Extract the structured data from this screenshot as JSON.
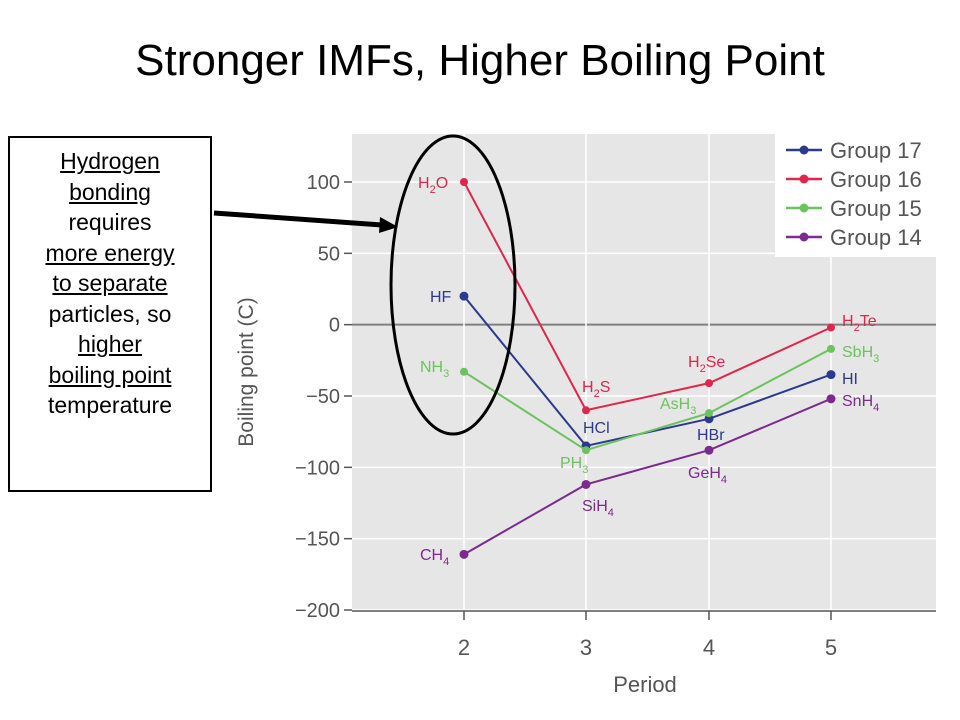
{
  "title": "Stronger IMFs, Higher Boiling Point",
  "callout": {
    "lines": [
      {
        "text": "Hydrogen",
        "underline": true
      },
      {
        "text": "bonding",
        "underline": true
      },
      {
        "text": "requires",
        "underline": false
      },
      {
        "text": "more energy",
        "underline": true
      },
      {
        "text": "to separate",
        "underline": true
      },
      {
        "text": "particles, so",
        "underline": false
      },
      {
        "text": "higher",
        "underline": true
      },
      {
        "text": "boiling point",
        "underline": true
      },
      {
        "text": "temperature",
        "underline": false
      }
    ]
  },
  "chart_data": {
    "type": "line",
    "xlabel": "Period",
    "ylabel": "Boiling point (C)",
    "x": [
      2,
      3,
      4,
      5
    ],
    "xticks": [
      "2",
      "3",
      "4",
      "5"
    ],
    "ylim": [
      -200,
      130
    ],
    "yticks": [
      {
        "value": 100,
        "label": "100"
      },
      {
        "value": 50,
        "label": "50"
      },
      {
        "value": 0,
        "label": "0"
      },
      {
        "value": -50,
        "label": "−50"
      },
      {
        "value": -100,
        "label": "−100"
      },
      {
        "value": -150,
        "label": "−150"
      },
      {
        "value": -200,
        "label": "−200"
      }
    ],
    "grid": true,
    "legend": "top-right",
    "series": [
      {
        "name": "Group 17",
        "color": "#2b3a8c",
        "values": [
          20,
          -85,
          -66,
          -35
        ],
        "labels": [
          {
            "base": "HF",
            "sub": ""
          },
          {
            "base": "HCl",
            "sub": ""
          },
          {
            "base": "HBr",
            "sub": ""
          },
          {
            "base": "HI",
            "sub": ""
          }
        ]
      },
      {
        "name": "Group 16",
        "color": "#e0264b",
        "values": [
          100,
          -60,
          -41,
          -2
        ],
        "labels": [
          {
            "base": "H",
            "sub": "2",
            "tail": "O"
          },
          {
            "base": "H",
            "sub": "2",
            "tail": "S"
          },
          {
            "base": "H",
            "sub": "2",
            "tail": "Se"
          },
          {
            "base": "H",
            "sub": "2",
            "tail": "Te"
          }
        ]
      },
      {
        "name": "Group 15",
        "color": "#6cc25e",
        "values": [
          -33,
          -88,
          -62,
          -17
        ],
        "labels": [
          {
            "base": "NH",
            "sub": "3"
          },
          {
            "base": "PH",
            "sub": "3"
          },
          {
            "base": "AsH",
            "sub": "3"
          },
          {
            "base": "SbH",
            "sub": "3"
          }
        ]
      },
      {
        "name": "Group 14",
        "color": "#7b2a8e",
        "values": [
          -161,
          -112,
          -88,
          -52
        ],
        "labels": [
          {
            "base": "CH",
            "sub": "4"
          },
          {
            "base": "SiH",
            "sub": "4"
          },
          {
            "base": "GeH",
            "sub": "4"
          },
          {
            "base": "SnH",
            "sub": "4"
          }
        ]
      }
    ]
  },
  "colors": {
    "plot_background": "#e6e6e6",
    "grid": "#ffffff",
    "zero_line": "#808080",
    "axis_text": "#555555"
  }
}
